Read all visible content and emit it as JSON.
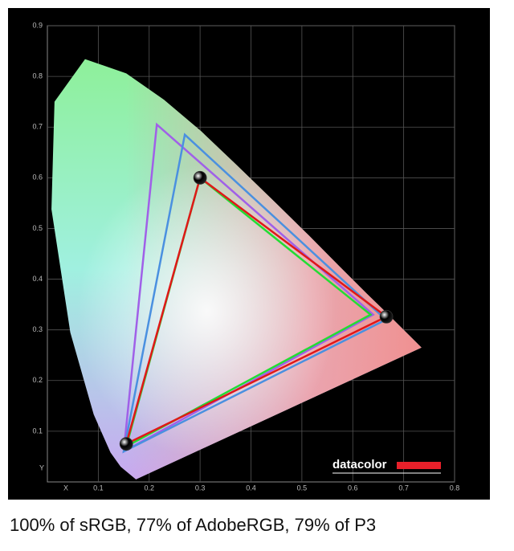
{
  "chart_data": {
    "type": "gamut",
    "caption": "100% of sRGB, 77% of AdobeRGB, 79% of P3",
    "x_label": "X",
    "y_label": "Y",
    "logo": "datacolor",
    "xlim": [
      0,
      0.8
    ],
    "ylim": [
      0,
      0.9
    ],
    "xticks": [
      0.1,
      0.2,
      0.3,
      0.4,
      0.5,
      0.6,
      0.7,
      0.8
    ],
    "yticks": [
      0.1,
      0.2,
      0.3,
      0.4,
      0.5,
      0.6,
      0.7,
      0.8,
      0.9
    ],
    "grid": true,
    "locus": {
      "x": [
        0.174,
        0.144,
        0.124,
        0.091,
        0.045,
        0.008,
        0.014,
        0.074,
        0.155,
        0.229,
        0.302,
        0.373,
        0.444,
        0.513,
        0.575,
        0.627,
        0.666,
        0.735
      ],
      "y": [
        0.005,
        0.03,
        0.058,
        0.133,
        0.295,
        0.538,
        0.75,
        0.834,
        0.806,
        0.754,
        0.692,
        0.624,
        0.555,
        0.487,
        0.424,
        0.372,
        0.334,
        0.265
      ]
    },
    "series": [
      {
        "color": "#a060e8",
        "x": [
          0.64,
          0.215,
          0.15
        ],
        "y": [
          0.33,
          0.705,
          0.06
        ]
      },
      {
        "color": "#4a90e0",
        "x": [
          0.665,
          0.27,
          0.15
        ],
        "y": [
          0.32,
          0.685,
          0.06
        ]
      },
      {
        "color": "#22dd33",
        "x": [
          0.635,
          0.3,
          0.155
        ],
        "y": [
          0.33,
          0.6,
          0.07
        ]
      },
      {
        "color": "#e01818",
        "x": [
          0.666,
          0.3,
          0.155
        ],
        "y": [
          0.326,
          0.6,
          0.075
        ],
        "markers": true
      }
    ]
  }
}
